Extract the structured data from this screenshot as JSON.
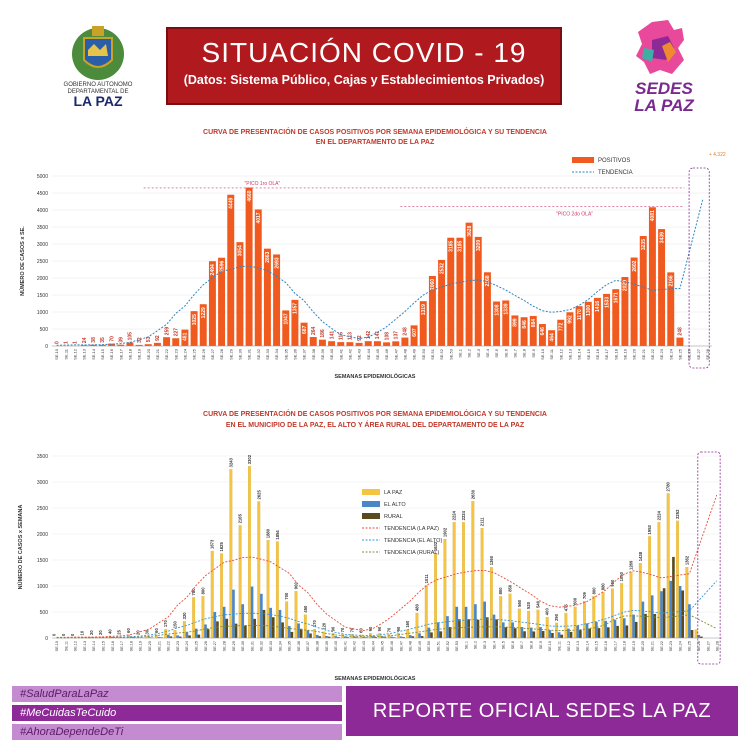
{
  "header": {
    "title": "SITUACIÓN  COVID - 19",
    "subtitle": "(Datos: Sistema Público, Cajas y Establecimientos Privados)"
  },
  "logo_left": {
    "caption": "GOBIERNO AUTONOMO DEPARTAMENTAL DE",
    "big": "LA PAZ"
  },
  "logo_right": {
    "name": "SEDES LA PAZ"
  },
  "footer": {
    "tags": [
      "#SaludParaLaPaz",
      "#MeCuidasTeCuido",
      "#AhoraDependeDeTi"
    ],
    "report": "REPORTE OFICIAL SEDES LA PAZ"
  },
  "colors": {
    "bar_orange": "#f05a1e",
    "bar_yellow": "#f5c542",
    "bar_blue": "#4a86c8",
    "bar_dark": "#5a4a1e",
    "header_red": "#b0191e",
    "purple": "#8e2a97"
  },
  "chart_data": [
    {
      "type": "bar",
      "title": "CURVA DE PRESENTACIÓN DE CASOS POSITIVOS POR SEMANA EPIDEMIOLÓGICA Y SU TENDENCIA",
      "title2": "EN EL DEPARTAMENTO DE LA PAZ",
      "xlabel": "SEMANAS EPIDEMIOLÓGICAS",
      "ylabel": "NÚMERO DE CASOS x SE.",
      "ylim": [
        0,
        5000
      ],
      "yticks": [
        0,
        500,
        1000,
        1500,
        2000,
        2500,
        3000,
        3500,
        4000,
        4500,
        5000
      ],
      "categories": [
        "SE.10",
        "SE.11",
        "SE.12",
        "SE.13",
        "SE.14",
        "SE.15",
        "SE.16",
        "SE.17",
        "SE.18",
        "SE.19",
        "SE.20",
        "SE.21",
        "SE.22",
        "SE.23",
        "SE.24",
        "SE.25",
        "SE.26",
        "SE.27",
        "SE.28",
        "SE.29",
        "SE.30",
        "SE.31",
        "SE.32",
        "SE.33",
        "SE.34",
        "SE.35",
        "SE.36",
        "SE.37",
        "SE.38",
        "SE.39",
        "SE.40",
        "SE.41",
        "SE.42",
        "SE.43",
        "SE.44",
        "SE.45",
        "SE.46",
        "SE.47",
        "SE.48",
        "SE.49",
        "SE.50",
        "SE.51",
        "SE.52",
        "SE.53",
        "SE.1",
        "SE.2",
        "SE.3",
        "SE.4",
        "SE.5",
        "SE.6",
        "SE.7",
        "SE.8",
        "SE.9",
        "SE.10",
        "SE.11",
        "SE.12",
        "SE.13",
        "SE.14",
        "SE.15",
        "SE.16",
        "SE.17",
        "SE.18",
        "SE.19",
        "SE.20",
        "SE.21",
        "SE.22",
        "SE.23",
        "SE.24",
        "SE.25",
        "SE.26",
        "SE.27",
        "SE.28"
      ],
      "series": [
        {
          "name": "POSITIVOS",
          "values": [
            0,
            1,
            1,
            24,
            38,
            35,
            70,
            39,
            105,
            32,
            53,
            92,
            259,
            227,
            481,
            1025,
            1229,
            2494,
            2596,
            4449,
            3054,
            4660,
            4017,
            2863,
            2693,
            1047,
            1357,
            687,
            264,
            186,
            141,
            115,
            113,
            92,
            142,
            141,
            108,
            137,
            248,
            607,
            1319,
            2060,
            2532,
            3185,
            3185,
            3628,
            3209,
            2168,
            1308,
            1339,
            899,
            846,
            884,
            646,
            464,
            772,
            992,
            1170,
            1300,
            1416,
            1533,
            1671,
            2029,
            2602,
            3235,
            4081,
            3439,
            2166,
            248,
            0,
            0,
            0
          ]
        },
        {
          "name": "TENDENCIA"
        }
      ],
      "legend": "top-right",
      "annotations": [
        "\"PICO 1ro OLA\"",
        "\"PICO 2do OLA\"",
        "+ 4.322"
      ]
    },
    {
      "type": "bar",
      "title": "CURVA DE PRESENTACIÓN DE CASOS POSITIVOS POR SEMANA EPIDEMIOLÓGICA Y SU TENDENCIA",
      "title2": "EN EL  MUNICIPIO DE LA PAZ, EL ALTO Y ÁREA RURAL DEL DEPARTAMENTO DE LA PAZ",
      "xlabel": "SEMANAS EPIDEMIOLÓGICAS",
      "ylabel": "NÚMERO DE CASOS x SEMANA",
      "ylim": [
        0,
        3500
      ],
      "yticks": [
        0,
        500,
        1000,
        1500,
        2000,
        2500,
        3000,
        3500
      ],
      "series": [
        {
          "name": "LA PAZ",
          "values": [
            0,
            0,
            0,
            10,
            20,
            20,
            40,
            25,
            60,
            20,
            30,
            60,
            170,
            150,
            320,
            780,
            800,
            1673,
            1625,
            3243,
            2165,
            3302,
            2625,
            1880,
            1854,
            700,
            900,
            450,
            170,
            120,
            90,
            70,
            70,
            60,
            90,
            90,
            70,
            90,
            160,
            480,
            1011,
            1632,
            1902,
            2224,
            2224,
            2630,
            2111,
            1360,
            800,
            850,
            560,
            520,
            540,
            400,
            290,
            475,
            600,
            709,
            800,
            880,
            950,
            1050,
            1269,
            1438,
            1953,
            2224,
            2780,
            2252,
            1362,
            160,
            0,
            0
          ]
        },
        {
          "name": "EL ALTO",
          "values": [
            0,
            0,
            0,
            8,
            10,
            10,
            20,
            10,
            30,
            8,
            15,
            20,
            60,
            50,
            110,
            180,
            260,
            500,
            600,
            930,
            650,
            990,
            850,
            580,
            540,
            230,
            280,
            150,
            60,
            40,
            35,
            30,
            30,
            20,
            35,
            35,
            25,
            30,
            55,
            90,
            200,
            300,
            420,
            600,
            600,
            650,
            700,
            450,
            300,
            300,
            210,
            200,
            210,
            150,
            110,
            180,
            240,
            280,
            310,
            330,
            350,
            380,
            450,
            700,
            820,
            900,
            1100,
            1000,
            650,
            60,
            0,
            0
          ]
        },
        {
          "name": "RURAL",
          "values": [
            0,
            0,
            0,
            6,
            8,
            5,
            10,
            4,
            15,
            4,
            8,
            12,
            30,
            27,
            50,
            65,
            170,
            320,
            370,
            276,
            240,
            368,
            540,
            400,
            300,
            117,
            177,
            87,
            34,
            26,
            16,
            15,
            13,
            12,
            17,
            16,
            13,
            17,
            33,
            37,
            108,
            128,
            210,
            361,
            361,
            348,
            398,
            358,
            208,
            189,
            129,
            126,
            134,
            96,
            64,
            117,
            152,
            181,
            190,
            206,
            233,
            241,
            310,
            464,
            462,
            957,
            1559,
            914,
            154,
            28,
            0,
            0
          ]
        },
        {
          "name": "TENDENCIA (LA PAZ)"
        },
        {
          "name": "TENDENCIA (EL ALTO)"
        },
        {
          "name": "TENDENCIA (RURAL)"
        }
      ],
      "legend": "top-center"
    }
  ]
}
